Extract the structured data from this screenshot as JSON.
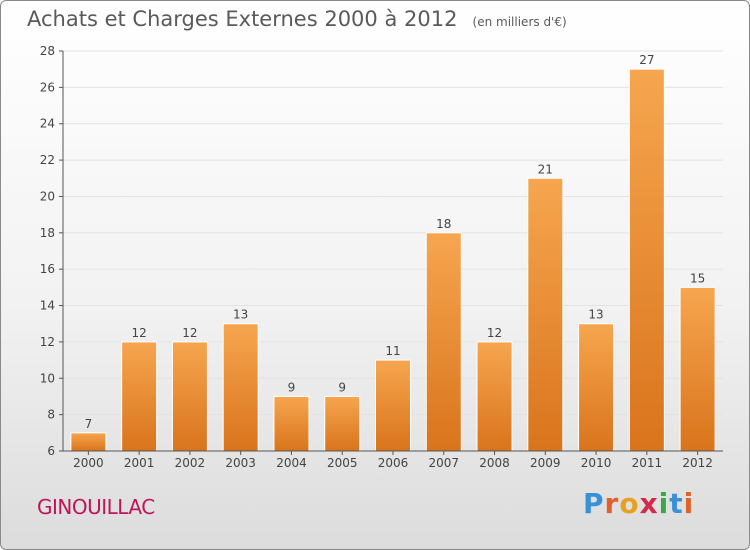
{
  "title": "Achats et Charges Externes 2000 à 2012",
  "unit": "(en milliers d'€)",
  "commune": "GINOUILLAC",
  "brand": {
    "letters": [
      "P",
      "r",
      "o",
      "x",
      "i",
      "t",
      "i"
    ],
    "colors": [
      "#3a8fd9",
      "#e0622a",
      "#e8a020",
      "#d32a4a",
      "#3aa84a",
      "#3a8fd9",
      "#e0622a"
    ]
  },
  "colors": {
    "bar_light": "#f6a64f",
    "bar_dark": "#d9741c",
    "axis": "#555555",
    "grid": "#e2e2e2"
  },
  "chart_data": {
    "type": "bar",
    "categories": [
      "2000",
      "2001",
      "2002",
      "2003",
      "2004",
      "2005",
      "2006",
      "2007",
      "2008",
      "2009",
      "2010",
      "2011",
      "2012"
    ],
    "values": [
      7,
      12,
      12,
      13,
      9,
      9,
      11,
      18,
      12,
      21,
      13,
      27,
      15
    ],
    "ylim": [
      6,
      28
    ],
    "yticks": [
      6,
      8,
      10,
      12,
      14,
      16,
      18,
      20,
      22,
      24,
      26,
      28
    ],
    "grid": true
  }
}
